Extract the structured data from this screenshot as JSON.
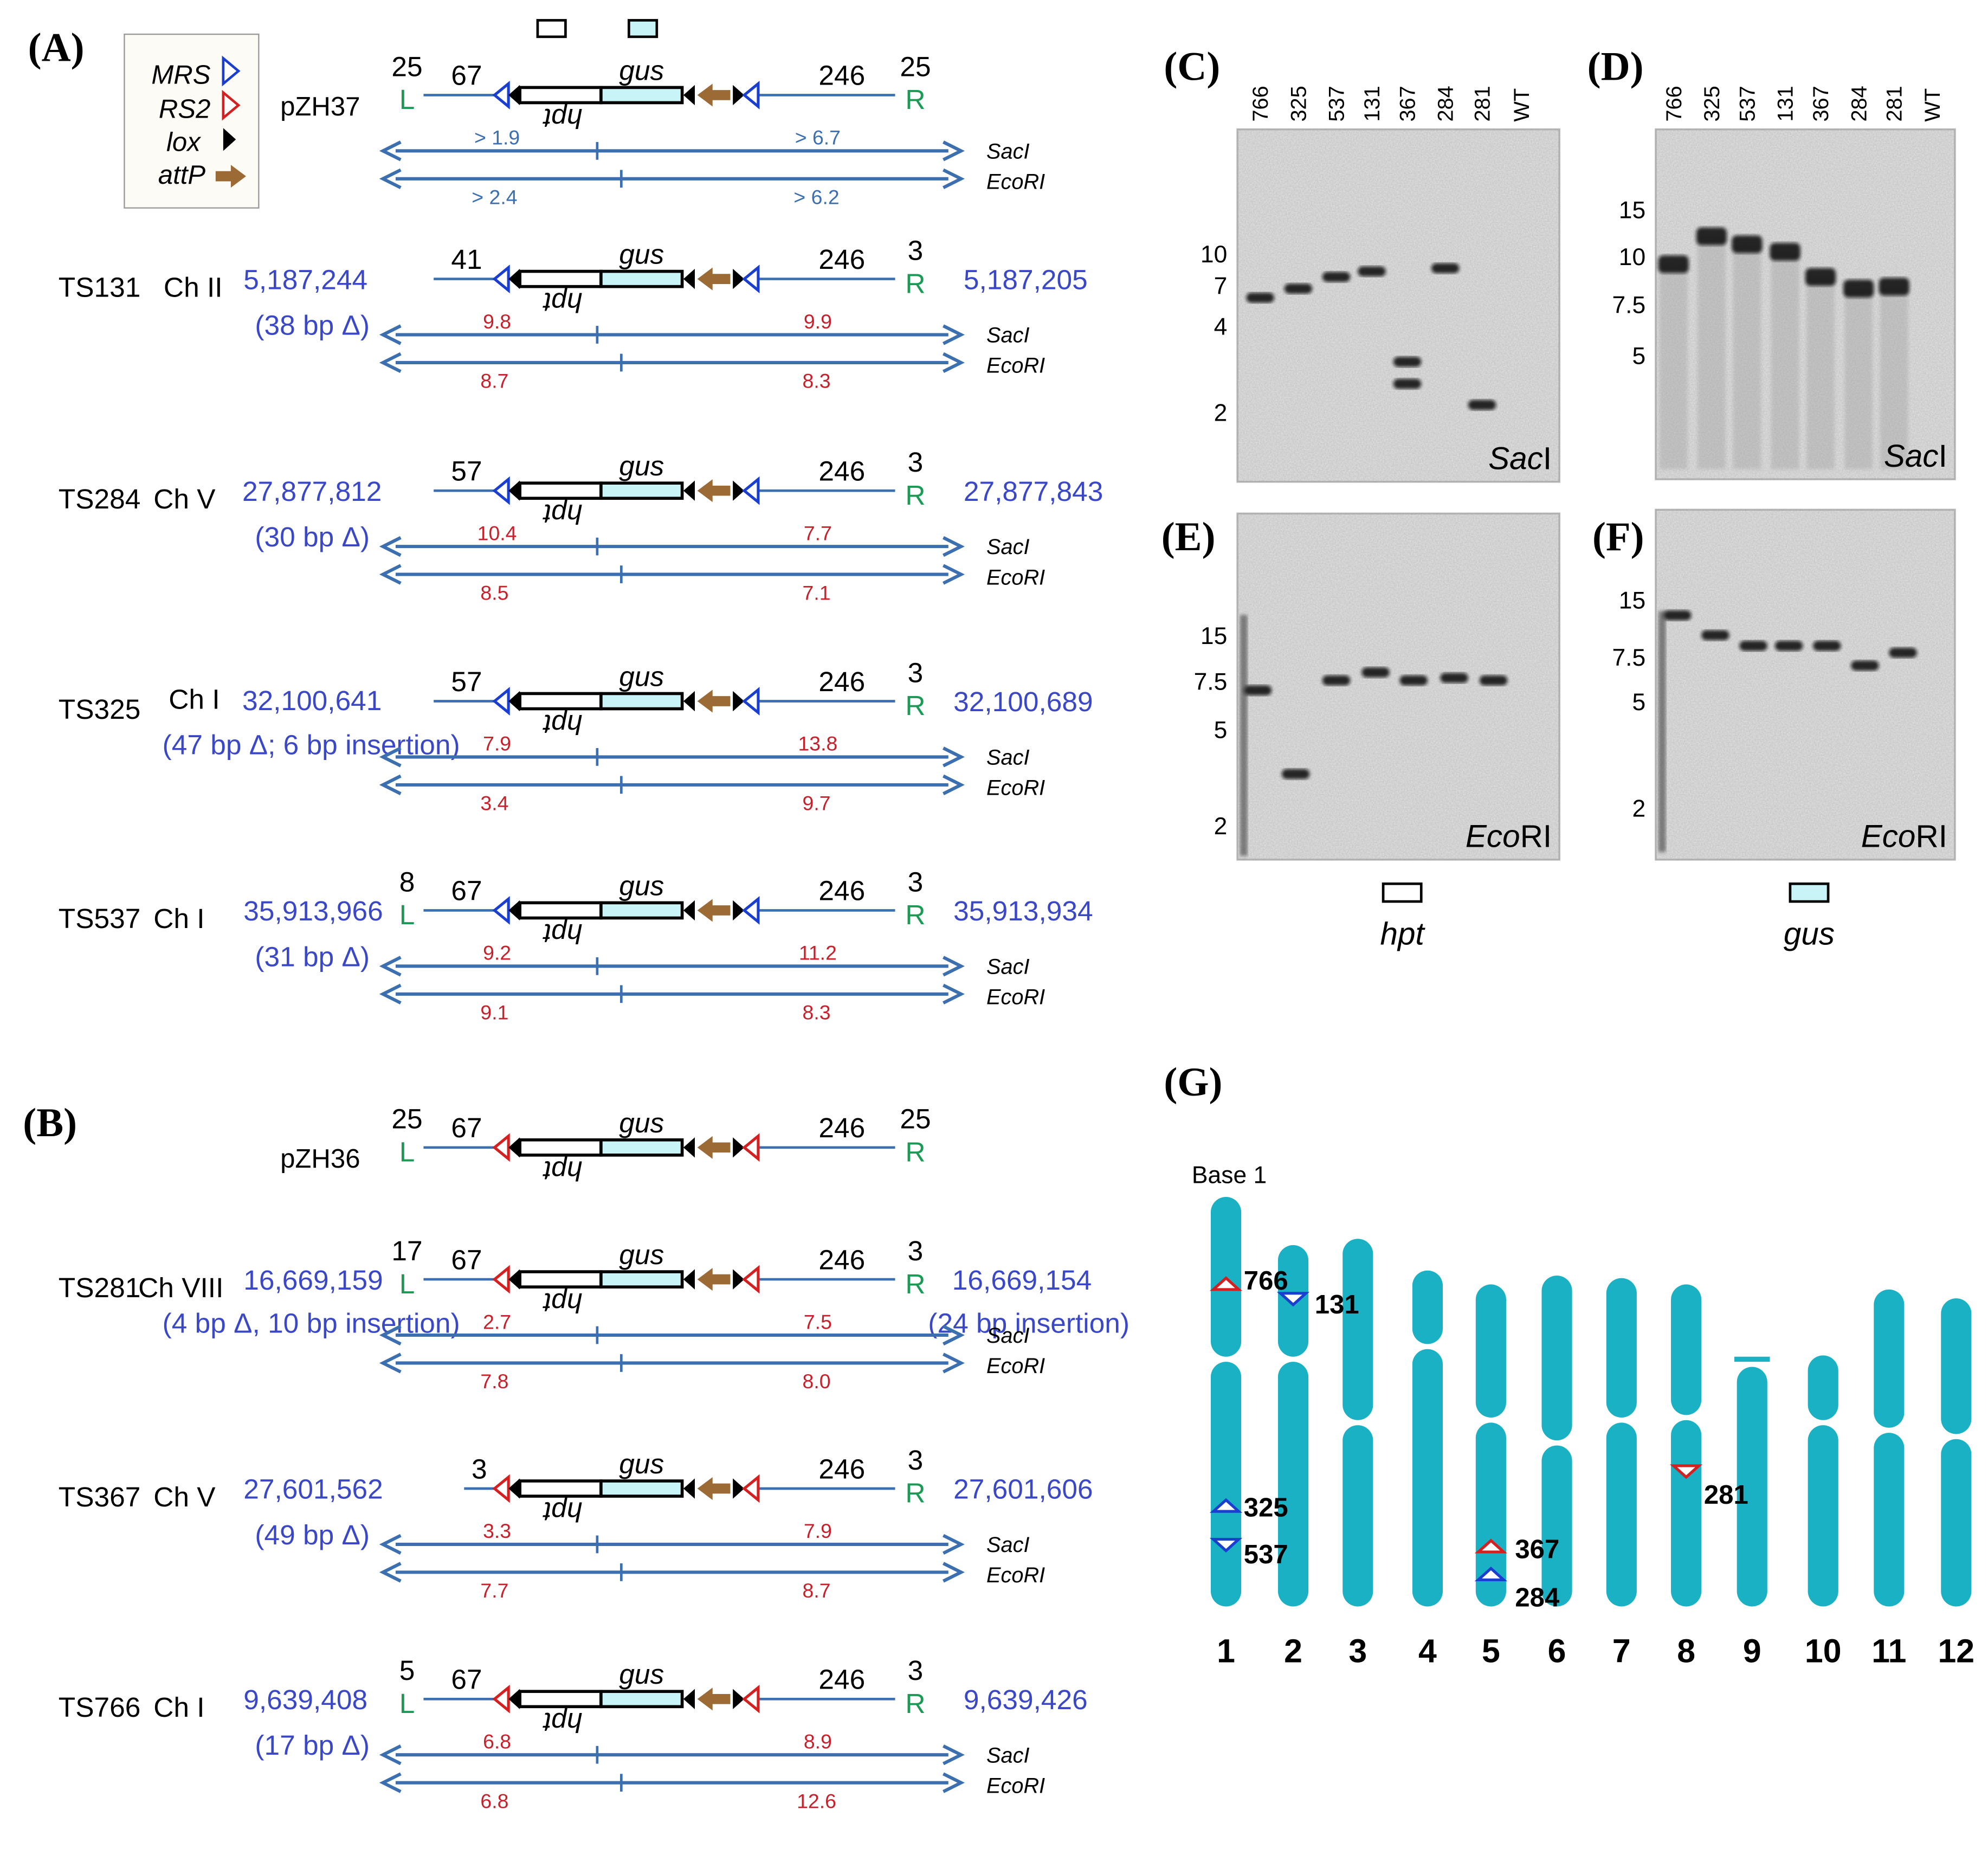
{
  "panels": {
    "A": "(A)",
    "B": "(B)",
    "C": "(C)",
    "D": "(D)",
    "E": "(E)",
    "F": "(F)",
    "G": "(G)"
  },
  "legend": [
    {
      "label": "MRS"
    },
    {
      "label": "RS2"
    },
    {
      "label": "lox"
    },
    {
      "label": "attP"
    }
  ],
  "colors": {
    "mrs": "#1a3fd0",
    "rs2": "#d42020",
    "attp": "#9c6a35",
    "gus_fill": "#c8f4f7",
    "line": "#3b6fb0",
    "coord": "#3a48c8",
    "fragment": "#c8202a",
    "border": "#1a9a55",
    "chromosome": "#1ab1c4"
  },
  "constructs": [
    {
      "name": "pZH37",
      "chromosome": "",
      "site": "MRS",
      "left_num": "25",
      "left_letter": "L",
      "left_bp": "67",
      "right_bp": "246",
      "right_num": "25",
      "right_letter": "R",
      "coord_left": "",
      "coord_right": "",
      "note_left": "",
      "note_right": "",
      "sac": [
        "> 1.9",
        "> 6.7"
      ],
      "eco": [
        "> 2.4",
        "> 6.2"
      ],
      "sac_label": "SacI",
      "eco_label": "EcoRI",
      "gus": "gus",
      "hpt": "hpt"
    },
    {
      "name": "TS131",
      "chromosome": "Ch II",
      "site": "MRS",
      "left_num": "",
      "left_letter": "",
      "left_bp": "41",
      "right_bp": "246",
      "right_num": "3",
      "right_letter": "R",
      "coord_left": "5,187,244",
      "coord_right": "5,187,205",
      "note_left": "(38 bp Δ)",
      "note_right": "",
      "sac": [
        "9.8",
        "9.9"
      ],
      "eco": [
        "8.7",
        "8.3"
      ],
      "sac_label": "SacI",
      "eco_label": "EcoRI",
      "gus": "gus",
      "hpt": "hpt"
    },
    {
      "name": "TS284",
      "chromosome": "Ch V",
      "site": "MRS",
      "left_num": "",
      "left_letter": "",
      "left_bp": "57",
      "right_bp": "246",
      "right_num": "3",
      "right_letter": "R",
      "coord_left": "27,877,812",
      "coord_right": "27,877,843",
      "note_left": "(30 bp Δ)",
      "note_right": "",
      "sac": [
        "10.4",
        "7.7"
      ],
      "eco": [
        "8.5",
        "7.1"
      ],
      "sac_label": "SacI",
      "eco_label": "EcoRI",
      "gus": "gus",
      "hpt": "hpt"
    },
    {
      "name": "TS325",
      "chromosome": "Ch I",
      "site": "MRS",
      "left_num": "",
      "left_letter": "",
      "left_bp": "57",
      "right_bp": "246",
      "right_num": "3",
      "right_letter": "R",
      "coord_left": "32,100,641",
      "coord_right": "32,100,689",
      "note_left": "(47 bp Δ; 6 bp insertion)",
      "note_right": "",
      "sac": [
        "7.9",
        "13.8"
      ],
      "eco": [
        "3.4",
        "9.7"
      ],
      "sac_label": "SacI",
      "eco_label": "EcoRI",
      "gus": "gus",
      "hpt": "hpt"
    },
    {
      "name": "TS537",
      "chromosome": "Ch I",
      "site": "MRS",
      "left_num": "8",
      "left_letter": "L",
      "left_bp": "67",
      "right_bp": "246",
      "right_num": "3",
      "right_letter": "R",
      "coord_left": "35,913,966",
      "coord_right": "35,913,934",
      "note_left": "(31 bp Δ)",
      "note_right": "",
      "sac": [
        "9.2",
        "11.2"
      ],
      "eco": [
        "9.1",
        "8.3"
      ],
      "sac_label": "SacI",
      "eco_label": "EcoRI",
      "gus": "gus",
      "hpt": "hpt"
    },
    {
      "name": "pZH36",
      "chromosome": "",
      "site": "RS2",
      "left_num": "25",
      "left_letter": "L",
      "left_bp": "67",
      "right_bp": "246",
      "right_num": "25",
      "right_letter": "R",
      "coord_left": "",
      "coord_right": "",
      "note_left": "",
      "note_right": "",
      "sac": [],
      "eco": [],
      "sac_label": "",
      "eco_label": "",
      "gus": "gus",
      "hpt": "hpt"
    },
    {
      "name": "TS281",
      "chromosome": "Ch VIII",
      "site": "RS2",
      "left_num": "17",
      "left_letter": "L",
      "left_bp": "67",
      "right_bp": "246",
      "right_num": "3",
      "right_letter": "R",
      "coord_left": "16,669,159",
      "coord_right": "16,669,154",
      "note_left": "(4 bp Δ, 10 bp insertion)",
      "note_right": "(24 bp insertion)",
      "sac": [
        "2.7",
        "7.5"
      ],
      "eco": [
        "7.8",
        "8.0"
      ],
      "sac_label": "SacI",
      "eco_label": "EcoRI",
      "gus": "gus",
      "hpt": "hpt"
    },
    {
      "name": "TS367",
      "chromosome": "Ch V",
      "site": "RS2",
      "left_num": "",
      "left_letter": "",
      "left_bp": "3",
      "right_bp": "246",
      "right_num": "3",
      "right_letter": "R",
      "coord_left": "27,601,562",
      "coord_right": "27,601,606",
      "note_left": "(49 bp Δ)",
      "note_right": "",
      "sac": [
        "3.3",
        "7.9"
      ],
      "eco": [
        "7.7",
        "8.7"
      ],
      "sac_label": "SacI",
      "eco_label": "EcoRI",
      "gus": "gus",
      "hpt": "hpt"
    },
    {
      "name": "TS766",
      "chromosome": "Ch I",
      "site": "RS2",
      "left_num": "5",
      "left_letter": "L",
      "left_bp": "67",
      "right_bp": "246",
      "right_num": "3",
      "right_letter": "R",
      "coord_left": "9,639,408",
      "coord_right": "9,639,426",
      "note_left": "(17 bp Δ)",
      "note_right": "",
      "sac": [
        "6.8",
        "8.9"
      ],
      "eco": [
        "6.8",
        "12.6"
      ],
      "sac_label": "SacI",
      "eco_label": "EcoRI",
      "gus": "gus",
      "hpt": "hpt"
    }
  ],
  "blots": [
    {
      "id": "C",
      "enzyme": "SacI",
      "lane_labels": [
        "766",
        "325",
        "537",
        "131",
        "367",
        "284",
        "281",
        "WT"
      ],
      "markers": [
        "10",
        "7",
        "4",
        "2"
      ],
      "probe": "",
      "bands": [
        [
          6.0
        ],
        [
          6.8
        ],
        [
          7.8
        ],
        [
          8.3
        ],
        [
          3.0,
          2.5
        ],
        [
          8.6
        ],
        [
          2.1
        ],
        []
      ]
    },
    {
      "id": "D",
      "enzyme": "SacI",
      "lane_labels": [
        "766",
        "325",
        "537",
        "131",
        "367",
        "284",
        "281",
        "WT"
      ],
      "markers": [
        "15",
        "10",
        "7.5",
        "5"
      ],
      "probe": "",
      "bands": [
        [
          9.6
        ],
        [
          12.0
        ],
        [
          11.2
        ],
        [
          10.5
        ],
        [
          8.9
        ],
        [
          8.3
        ],
        [
          8.4
        ],
        []
      ]
    },
    {
      "id": "E",
      "enzyme": "EcoRI",
      "lane_labels": [],
      "markers": [
        "15",
        "7.5",
        "5",
        "2"
      ],
      "probe": "hpt",
      "bands": [
        [
          7.0
        ],
        [
          3.3
        ],
        [
          7.7
        ],
        [
          8.7
        ],
        [
          7.7
        ],
        [
          8.0
        ],
        [
          7.7
        ],
        []
      ]
    },
    {
      "id": "F",
      "enzyme": "EcoRI",
      "lane_labels": [],
      "markers": [
        "15",
        "7.5",
        "5",
        "2"
      ],
      "probe": "gus",
      "bands": [
        [
          12.6
        ],
        [
          9.9
        ],
        [
          8.7
        ],
        [
          8.7
        ],
        [
          8.7
        ],
        [
          7.0
        ],
        [
          8.0
        ],
        []
      ]
    }
  ],
  "karyotype": {
    "base_label": "Base 1",
    "chromosomes": [
      "1",
      "2",
      "3",
      "4",
      "5",
      "6",
      "7",
      "8",
      "9",
      "10",
      "11",
      "12"
    ],
    "insertions": [
      {
        "line": "766",
        "chromosome": "1",
        "site": "RS2",
        "pos": 0.21
      },
      {
        "line": "131",
        "chromosome": "2",
        "site": "MRS",
        "pos": 0.2
      },
      {
        "line": "325",
        "chromosome": "1",
        "site": "MRS",
        "pos": 0.76
      },
      {
        "line": "537",
        "chromosome": "1",
        "site": "MRS",
        "pos": 0.84
      },
      {
        "line": "281",
        "chromosome": "8",
        "site": "RS2",
        "pos": 0.6
      },
      {
        "line": "367",
        "chromosome": "5",
        "site": "RS2",
        "pos": 0.82
      },
      {
        "line": "284",
        "chromosome": "5",
        "site": "MRS",
        "pos": 0.89
      }
    ]
  }
}
